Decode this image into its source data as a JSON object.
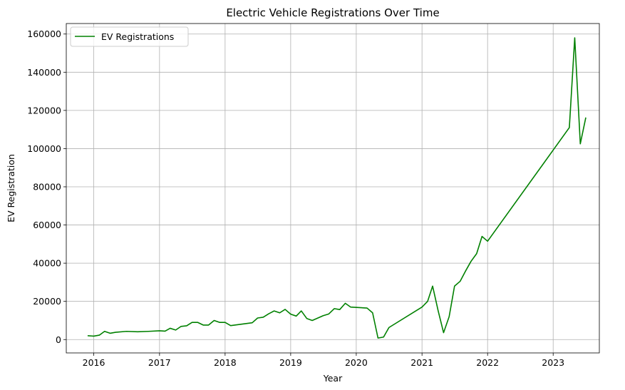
{
  "chart_data": {
    "type": "line",
    "title": "Electric Vehicle Registrations Over Time",
    "xlabel": "Year",
    "ylabel": "EV Registration",
    "x_ticks": [
      "2016",
      "2017",
      "2018",
      "2019",
      "2020",
      "2021",
      "2022",
      "2023"
    ],
    "y_ticks": [
      "0",
      "20000",
      "40000",
      "60000",
      "80000",
      "100000",
      "120000",
      "140000",
      "160000"
    ],
    "xlim": [
      "2015-08-01",
      "2023-09-15"
    ],
    "ylim": [
      -7000,
      165500
    ],
    "grid": true,
    "legend_position": "top-left",
    "series": [
      {
        "name": "EV Registrations",
        "color": "#008000",
        "points": [
          [
            "2015-12-01",
            2000
          ],
          [
            "2016-01-01",
            1800
          ],
          [
            "2016-02-01",
            2300
          ],
          [
            "2016-03-01",
            4300
          ],
          [
            "2016-04-01",
            3300
          ],
          [
            "2016-05-01",
            3800
          ],
          [
            "2016-07-01",
            4300
          ],
          [
            "2016-09-01",
            4100
          ],
          [
            "2016-11-01",
            4300
          ],
          [
            "2017-01-01",
            4600
          ],
          [
            "2017-02-01",
            4400
          ],
          [
            "2017-03-01",
            5900
          ],
          [
            "2017-04-01",
            5000
          ],
          [
            "2017-05-01",
            6900
          ],
          [
            "2017-06-01",
            7200
          ],
          [
            "2017-07-01",
            9000
          ],
          [
            "2017-08-01",
            9000
          ],
          [
            "2017-09-01",
            7600
          ],
          [
            "2017-10-01",
            7600
          ],
          [
            "2017-11-01",
            10000
          ],
          [
            "2017-12-01",
            9000
          ],
          [
            "2018-01-01",
            9000
          ],
          [
            "2018-02-01",
            7300
          ],
          [
            "2018-06-01",
            8800
          ],
          [
            "2018-07-01",
            11300
          ],
          [
            "2018-08-01",
            11700
          ],
          [
            "2018-09-01",
            13500
          ],
          [
            "2018-10-01",
            15000
          ],
          [
            "2018-11-01",
            14000
          ],
          [
            "2018-12-01",
            15800
          ],
          [
            "2019-01-01",
            13300
          ],
          [
            "2019-02-01",
            12300
          ],
          [
            "2019-03-01",
            15000
          ],
          [
            "2019-04-01",
            11000
          ],
          [
            "2019-05-01",
            10000
          ],
          [
            "2019-07-01",
            12500
          ],
          [
            "2019-08-01",
            13400
          ],
          [
            "2019-09-01",
            16200
          ],
          [
            "2019-10-01",
            15700
          ],
          [
            "2019-11-01",
            19000
          ],
          [
            "2019-12-01",
            17000
          ],
          [
            "2020-03-01",
            16500
          ],
          [
            "2020-04-01",
            14000
          ],
          [
            "2020-05-01",
            800
          ],
          [
            "2020-06-01",
            1300
          ],
          [
            "2020-07-01",
            6300
          ],
          [
            "2021-01-01",
            17000
          ],
          [
            "2021-02-01",
            20000
          ],
          [
            "2021-03-01",
            28000
          ],
          [
            "2021-04-01",
            15000
          ],
          [
            "2021-05-01",
            3600
          ],
          [
            "2021-06-01",
            12000
          ],
          [
            "2021-07-01",
            28000
          ],
          [
            "2021-08-01",
            30500
          ],
          [
            "2021-09-01",
            36000
          ],
          [
            "2021-10-01",
            41000
          ],
          [
            "2021-11-01",
            45000
          ],
          [
            "2021-12-01",
            54000
          ],
          [
            "2022-01-01",
            51500
          ],
          [
            "2023-04-01",
            111000
          ],
          [
            "2023-05-01",
            158000
          ],
          [
            "2023-06-01",
            102500
          ],
          [
            "2023-07-01",
            116000
          ]
        ]
      }
    ]
  }
}
